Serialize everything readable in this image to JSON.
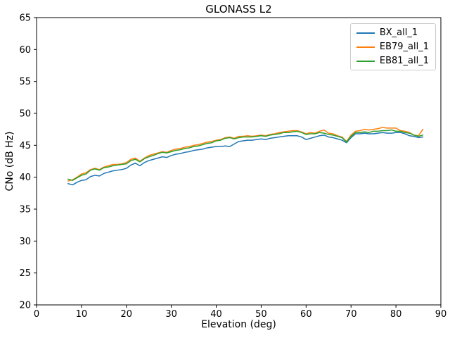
{
  "chart_data": {
    "type": "line",
    "title": "GLONASS L2",
    "xlabel": "Elevation (deg)",
    "ylabel": "CNo (dB Hz)",
    "xlim": [
      0,
      90
    ],
    "ylim": [
      20,
      65
    ],
    "xticks": [
      0,
      10,
      20,
      30,
      40,
      50,
      60,
      70,
      80,
      90
    ],
    "yticks": [
      20,
      25,
      30,
      35,
      40,
      45,
      50,
      55,
      60,
      65
    ],
    "grid": false,
    "legend_position": "upper right",
    "line_width": 1.5,
    "x": [
      7,
      8,
      9,
      10,
      11,
      12,
      13,
      14,
      15,
      16,
      17,
      18,
      19,
      20,
      21,
      22,
      23,
      24,
      25,
      26,
      27,
      28,
      29,
      30,
      31,
      32,
      33,
      34,
      35,
      36,
      37,
      38,
      39,
      40,
      41,
      42,
      43,
      44,
      45,
      46,
      47,
      48,
      49,
      50,
      51,
      52,
      53,
      54,
      55,
      56,
      57,
      58,
      59,
      60,
      61,
      62,
      63,
      64,
      65,
      66,
      67,
      68,
      69,
      70,
      71,
      72,
      73,
      74,
      75,
      76,
      77,
      78,
      79,
      80,
      81,
      82,
      83,
      84,
      85,
      86
    ],
    "series": [
      {
        "name": "BX_all_1",
        "color": "#1f77b4",
        "values": [
          39.0,
          38.8,
          39.2,
          39.5,
          39.6,
          40.1,
          40.3,
          40.2,
          40.6,
          40.8,
          41.0,
          41.1,
          41.2,
          41.4,
          41.9,
          42.2,
          41.8,
          42.3,
          42.6,
          42.8,
          43.0,
          43.2,
          43.1,
          43.4,
          43.6,
          43.7,
          43.9,
          44.0,
          44.2,
          44.3,
          44.4,
          44.6,
          44.7,
          44.8,
          44.8,
          44.9,
          44.8,
          45.2,
          45.6,
          45.7,
          45.8,
          45.8,
          45.9,
          46.0,
          45.9,
          46.1,
          46.2,
          46.3,
          46.4,
          46.5,
          46.5,
          46.5,
          46.3,
          45.9,
          46.1,
          46.3,
          46.5,
          46.6,
          46.3,
          46.2,
          46.0,
          45.8,
          45.4,
          46.2,
          46.8,
          46.8,
          46.9,
          46.8,
          46.8,
          46.9,
          47.0,
          46.9,
          46.9,
          47.0,
          47.0,
          46.8,
          46.5,
          46.4,
          46.2,
          46.3
        ]
      },
      {
        "name": "EB79_all_1",
        "color": "#ff7f0e",
        "values": [
          39.4,
          39.6,
          40.0,
          40.5,
          40.7,
          41.2,
          41.4,
          41.2,
          41.6,
          41.8,
          42.0,
          42.0,
          42.1,
          42.3,
          42.8,
          43.0,
          42.5,
          43.0,
          43.4,
          43.6,
          43.8,
          44.0,
          43.9,
          44.2,
          44.4,
          44.5,
          44.7,
          44.8,
          45.0,
          45.1,
          45.3,
          45.5,
          45.6,
          45.8,
          45.9,
          46.2,
          46.3,
          46.1,
          46.4,
          46.4,
          46.5,
          46.4,
          46.5,
          46.6,
          46.5,
          46.7,
          46.8,
          47.0,
          47.1,
          47.2,
          47.3,
          47.3,
          47.1,
          46.8,
          47.0,
          46.9,
          47.2,
          47.4,
          46.9,
          46.8,
          46.5,
          46.3,
          45.6,
          46.6,
          47.2,
          47.3,
          47.5,
          47.4,
          47.5,
          47.6,
          47.8,
          47.7,
          47.7,
          47.7,
          47.3,
          47.2,
          47.0,
          46.6,
          46.5,
          47.5
        ]
      },
      {
        "name": "EB81_all_1",
        "color": "#2ca02c",
        "values": [
          39.7,
          39.5,
          39.9,
          40.3,
          40.5,
          41.1,
          41.3,
          41.1,
          41.5,
          41.6,
          41.8,
          41.9,
          42.0,
          42.1,
          42.6,
          42.8,
          42.4,
          42.9,
          43.2,
          43.4,
          43.7,
          43.9,
          43.8,
          44.0,
          44.2,
          44.3,
          44.5,
          44.6,
          44.8,
          44.9,
          45.1,
          45.3,
          45.4,
          45.7,
          45.8,
          46.1,
          46.2,
          46.0,
          46.2,
          46.3,
          46.3,
          46.3,
          46.4,
          46.5,
          46.4,
          46.6,
          46.7,
          46.8,
          47.0,
          47.0,
          47.1,
          47.2,
          47.0,
          46.7,
          46.8,
          46.8,
          47.0,
          46.9,
          46.7,
          46.6,
          46.4,
          46.2,
          45.5,
          46.4,
          47.0,
          47.0,
          47.1,
          47.0,
          47.2,
          47.2,
          47.3,
          47.3,
          47.4,
          47.2,
          47.2,
          47.0,
          46.9,
          46.6,
          46.4,
          46.6
        ]
      }
    ]
  }
}
